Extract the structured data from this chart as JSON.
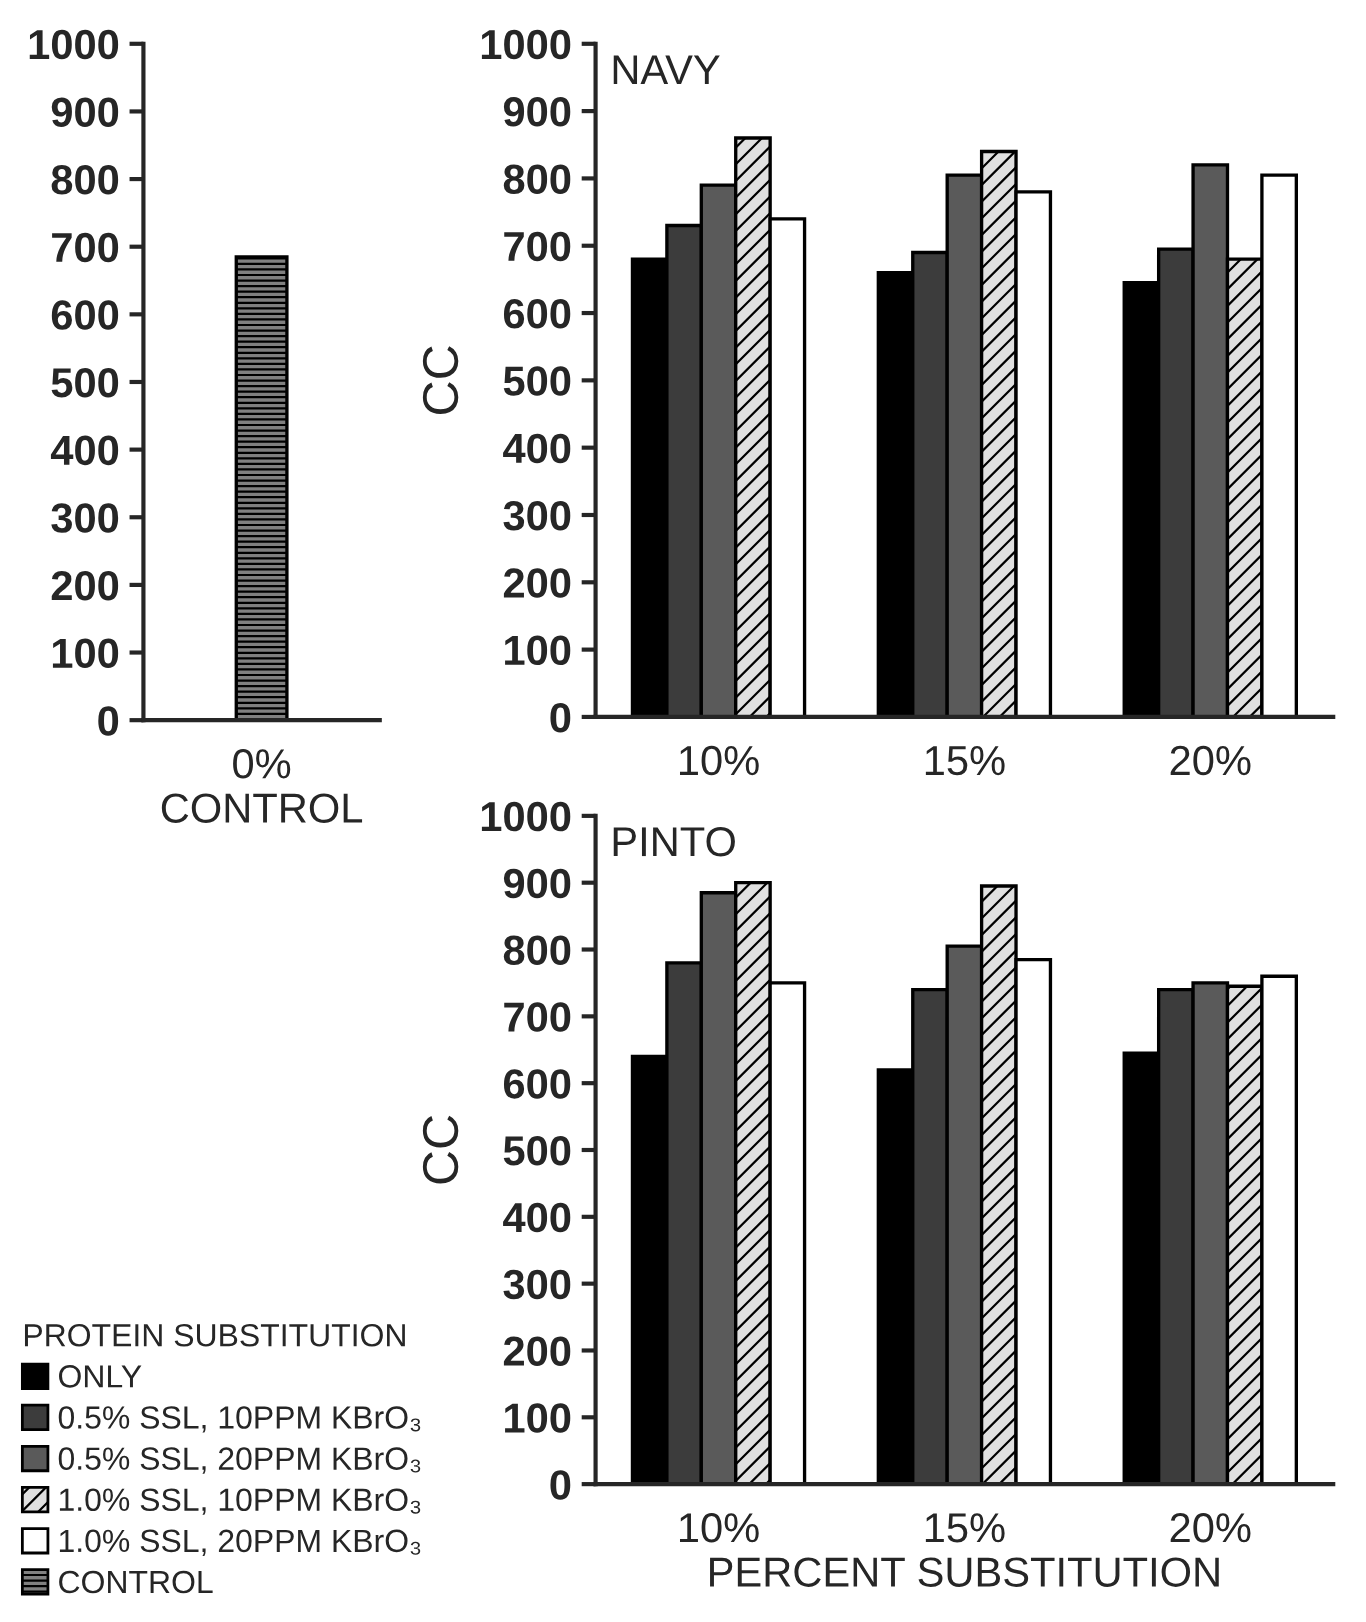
{
  "chart_data": [
    {
      "type": "bar",
      "categories": [
        "0%"
      ],
      "xlabel": "CONTROL",
      "ylim": [
        0,
        1000
      ],
      "yticks": [
        0,
        100,
        200,
        300,
        400,
        500,
        600,
        700,
        800,
        900,
        1000
      ],
      "grid": false,
      "legend": "bottom left",
      "series": [
        {
          "name": "CONTROL",
          "color": "#808080",
          "values": [
            685
          ]
        }
      ]
    },
    {
      "type": "bar",
      "title": "NAVY",
      "ylabel": "CC",
      "categories": [
        "10%",
        "15%",
        "20%"
      ],
      "ylim": [
        0,
        1000
      ],
      "yticks": [
        0,
        100,
        200,
        300,
        400,
        500,
        600,
        700,
        800,
        900,
        1000
      ],
      "grid": false,
      "legend": "bottom left",
      "series": [
        {
          "name": "ONLY",
          "color": "#000000",
          "values": [
            680,
            660,
            645
          ]
        },
        {
          "name": "0.5% SSL, 10PPM KBrO₃",
          "color": "#3c3c3c",
          "values": [
            730,
            690,
            695
          ]
        },
        {
          "name": "0.5% SSL, 20PPM KBrO₃",
          "color": "#5a5a5a",
          "values": [
            790,
            805,
            820
          ]
        },
        {
          "name": "1.0% SSL, 10PPM KBrO₃",
          "color": "#e0e0e0",
          "values": [
            860,
            840,
            680
          ]
        },
        {
          "name": "1.0% SSL, 20PPM KBrO₃",
          "color": "#ffffff",
          "values": [
            740,
            780,
            805
          ]
        }
      ]
    },
    {
      "type": "bar",
      "title": "PINTO",
      "ylabel": "CC",
      "xlabel": "PERCENT SUBSTITUTION",
      "legend_title": "PROTEIN SUBSTITUTION",
      "categories": [
        "10%",
        "15%",
        "20%"
      ],
      "ylim": [
        0,
        1000
      ],
      "yticks": [
        0,
        100,
        200,
        300,
        400,
        500,
        600,
        700,
        800,
        900,
        1000
      ],
      "grid": false,
      "legend": "bottom left",
      "series": [
        {
          "name": "ONLY",
          "color": "#000000",
          "values": [
            640,
            620,
            645
          ]
        },
        {
          "name": "0.5% SSL, 10PPM KBrO₃",
          "color": "#3c3c3c",
          "values": [
            780,
            740,
            740
          ]
        },
        {
          "name": "0.5% SSL, 20PPM KBrO₃",
          "color": "#5a5a5a",
          "values": [
            885,
            805,
            750
          ]
        },
        {
          "name": "1.0% SSL, 10PPM KBrO₃",
          "color": "#e0e0e0",
          "values": [
            900,
            895,
            745
          ]
        },
        {
          "name": "1.0% SSL, 20PPM KBrO₃",
          "color": "#ffffff",
          "values": [
            750,
            785,
            760
          ]
        }
      ]
    }
  ]
}
